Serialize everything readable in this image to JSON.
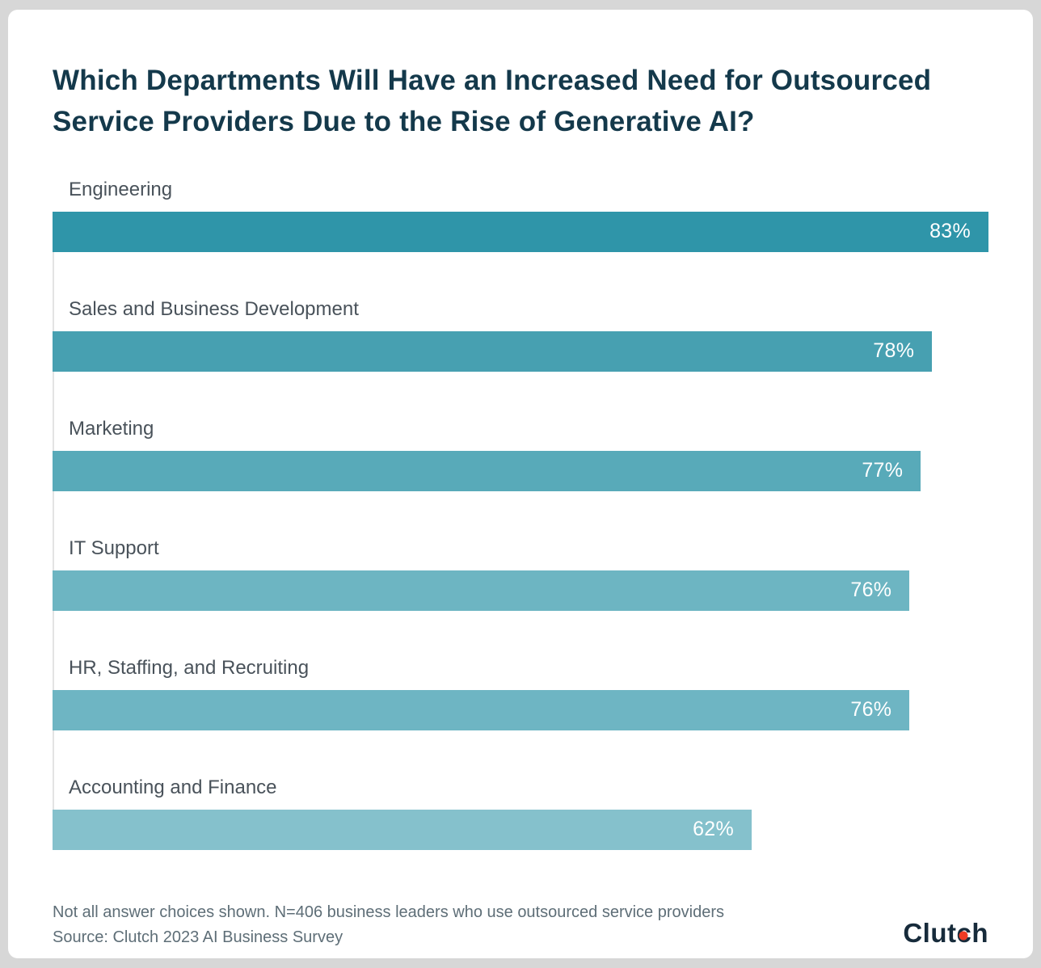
{
  "chart_data": {
    "type": "bar",
    "orientation": "horizontal",
    "title": "Which Departments Will Have an Increased Need for Outsourced Service Providers Due to the Rise of Generative AI?",
    "categories": [
      "Engineering",
      "Sales and Business Development",
      "Marketing",
      "IT Support",
      "HR, Staffing, and Recruiting",
      "Accounting and Finance"
    ],
    "values": [
      83,
      78,
      77,
      76,
      76,
      62
    ],
    "value_labels": [
      "83%",
      "78%",
      "77%",
      "76%",
      "76%",
      "62%"
    ],
    "bar_colors": [
      "#2f95a9",
      "#47a0b1",
      "#58aab9",
      "#6db5c2",
      "#6eb5c3",
      "#85c1cc"
    ],
    "xlim": [
      0,
      83
    ],
    "grid": false,
    "legend": "none",
    "value_label_position": "inside-right",
    "value_label_color": "#ffffff"
  },
  "footer": {
    "footnote_line1": "Not all answer choices shown. N=406 business leaders who use outsourced service providers",
    "footnote_line2": "Source: Clutch 2023 AI Business Survey",
    "logo": {
      "name": "Clutch",
      "part1": "Clut",
      "part2": "c",
      "part3": "h",
      "text_color": "#172b3b",
      "dot_color": "#ef3b24"
    }
  }
}
